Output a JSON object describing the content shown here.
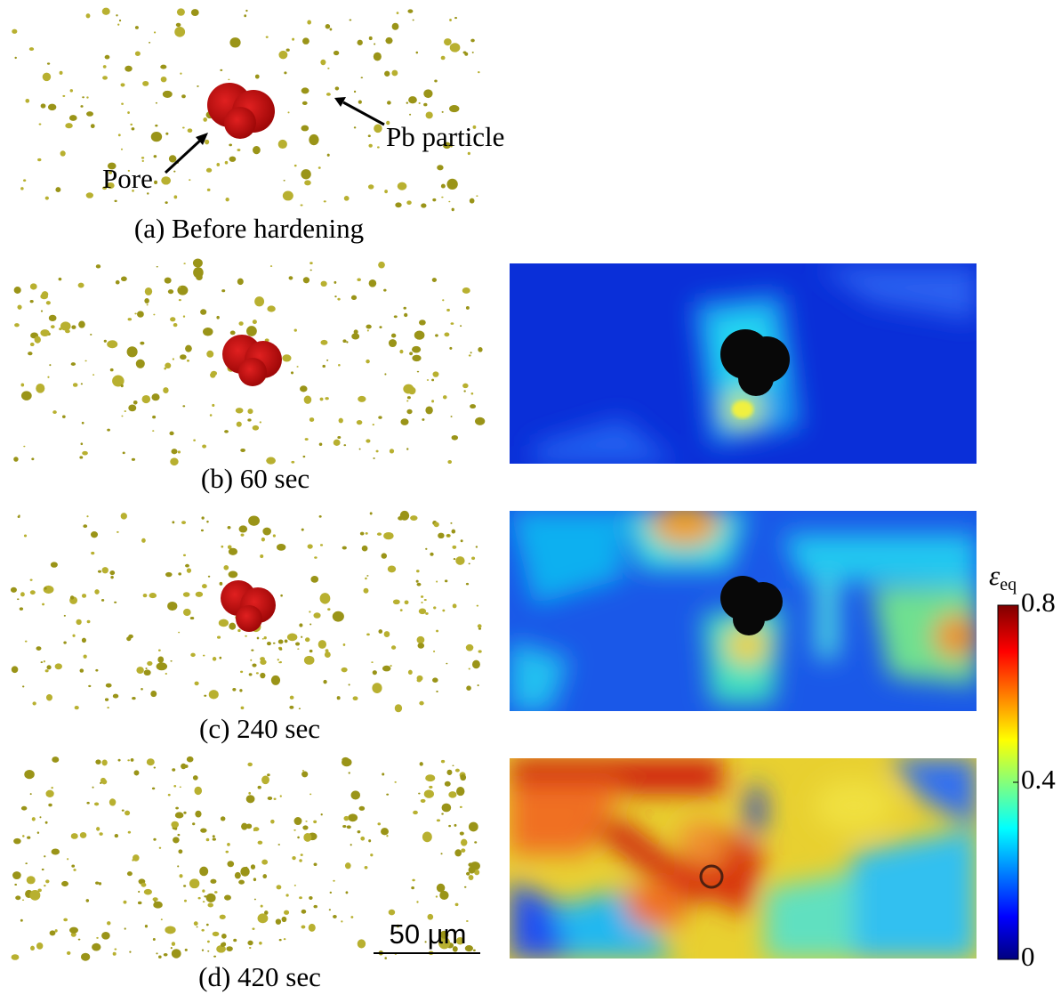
{
  "panels": [
    {
      "caption": "(a) Before hardening"
    },
    {
      "caption": "(b) 60 sec"
    },
    {
      "caption": "(c) 240 sec"
    },
    {
      "caption": "(d) 420 sec"
    }
  ],
  "annotations": {
    "pore": "Pore",
    "particle": "Pb particle"
  },
  "scale_bar": "50 µm",
  "colorbar": {
    "symbol": "ε",
    "subscript": "eq",
    "range": [
      0,
      0.8
    ],
    "ticks": [
      0,
      0.4,
      0.8
    ]
  }
}
